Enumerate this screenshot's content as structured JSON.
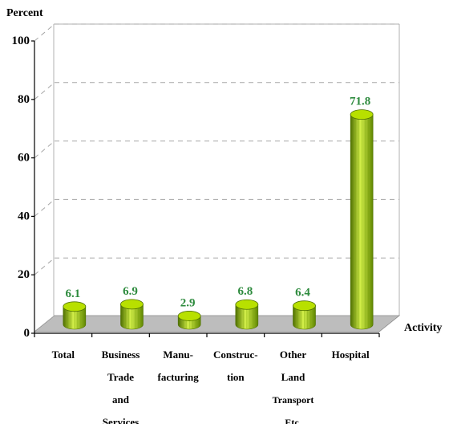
{
  "chart_data": {
    "type": "bar",
    "title": "",
    "ylabel": "Percent",
    "xlabel": "Activity",
    "ylim": [
      0,
      100
    ],
    "yticks": [
      "0",
      "20",
      "40",
      "60",
      "80",
      "100"
    ],
    "grid": true,
    "categories": [
      [
        "Total"
      ],
      [
        "Business",
        "Trade",
        "and",
        "Services"
      ],
      [
        "Manu-",
        "facturing"
      ],
      [
        "Construc-",
        "tion"
      ],
      [
        "Other",
        "Land",
        "Transport",
        "Etc."
      ],
      [
        "Hospital"
      ]
    ],
    "values": [
      6.1,
      6.9,
      2.9,
      6.8,
      6.4,
      71.8
    ],
    "data_labels": [
      "6.1",
      "6.9",
      "2.9",
      "6.8",
      "6.4",
      "71.8"
    ],
    "colors": {
      "bar_light": "#d4f04a",
      "bar_mid": "#9ccc00",
      "bar_dark": "#4f7000",
      "bar_top": "#b8e000",
      "floor": "#bdbdbd",
      "label": "#2e8b3e",
      "grid": "#a6a6a6"
    }
  }
}
